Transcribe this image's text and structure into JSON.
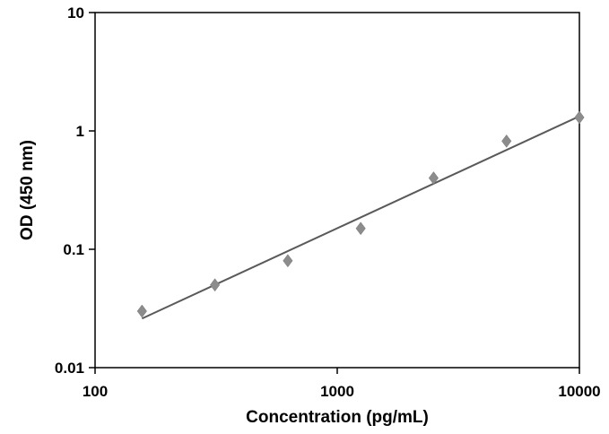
{
  "chart_data": {
    "type": "scatter",
    "title": "",
    "xlabel": "Concentration (pg/mL)",
    "ylabel": "OD (450 nm)",
    "xscale": "log",
    "yscale": "log",
    "xlim": [
      100,
      10000
    ],
    "ylim": [
      0.01,
      10
    ],
    "x_ticks": [
      100,
      1000,
      10000
    ],
    "x_tick_labels": [
      "100",
      "1000",
      "10000"
    ],
    "y_ticks": [
      0.01,
      0.1,
      1,
      10
    ],
    "y_tick_labels": [
      "0.01",
      "0.1",
      "1",
      "10"
    ],
    "grid": false,
    "legend": "none",
    "series": [
      {
        "x": [
          156.25,
          312.5,
          625,
          1250,
          2500,
          5000,
          10000
        ],
        "y": [
          0.03,
          0.05,
          0.08,
          0.15,
          0.4,
          0.82,
          1.3
        ],
        "marker": "diamond",
        "color": "#8c8c8c"
      }
    ],
    "trendline": {
      "type": "power",
      "x": [
        156.25,
        10000
      ],
      "y": [
        0.026,
        1.33
      ],
      "color": "#5a5a5a"
    }
  }
}
